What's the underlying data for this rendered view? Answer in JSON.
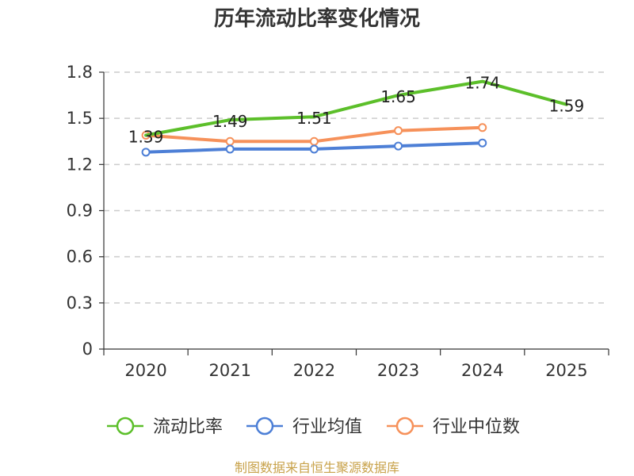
{
  "chart_data": {
    "type": "line",
    "title": "历年流动比率变化情况",
    "categories": [
      "2020",
      "2021",
      "2022",
      "2023",
      "2024",
      "2025"
    ],
    "ylim": [
      0,
      1.8
    ],
    "yticks": [
      "0",
      "0.3",
      "0.6",
      "0.9",
      "1.2",
      "1.5",
      "1.8"
    ],
    "grid": true,
    "legend_position": "bottom",
    "series": [
      {
        "name": "流动比率",
        "color": "#5cbf2a",
        "marker": false,
        "values": [
          1.39,
          1.49,
          1.51,
          1.65,
          1.74,
          1.59
        ],
        "labels": [
          "1.39",
          "1.49",
          "1.51",
          "1.65",
          "1.74",
          "1.59"
        ]
      },
      {
        "name": "行业均值",
        "color": "#4d7fd6",
        "marker": true,
        "values": [
          1.28,
          1.3,
          1.3,
          1.32,
          1.34,
          null
        ]
      },
      {
        "name": "行业中位数",
        "color": "#f6915a",
        "marker": true,
        "values": [
          1.39,
          1.35,
          1.35,
          1.42,
          1.44,
          null
        ]
      }
    ],
    "source": "制图数据来自恒生聚源数据库"
  }
}
